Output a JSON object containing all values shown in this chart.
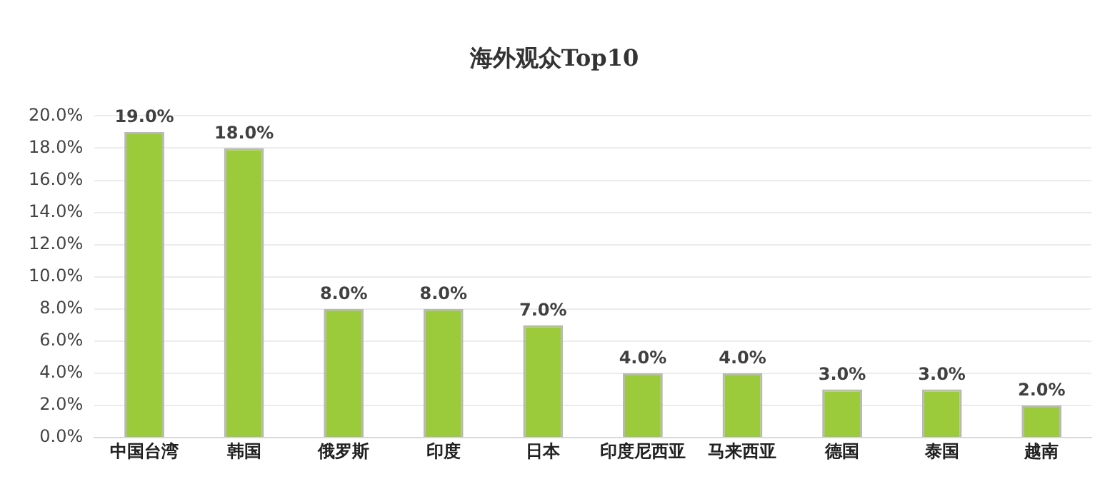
{
  "chart_data": {
    "type": "bar",
    "title": "海外观众Top10",
    "categories": [
      "中国台湾",
      "韩国",
      "俄罗斯",
      "印度",
      "日本",
      "印度尼西亚",
      "马来西亚",
      "德国",
      "泰国",
      "越南"
    ],
    "values": [
      19,
      18,
      8,
      8,
      7,
      4,
      4,
      3,
      3,
      2
    ],
    "value_labels": [
      "19.0%",
      "18.0%",
      "8.0%",
      "8.0%",
      "7.0%",
      "4.0%",
      "4.0%",
      "3.0%",
      "3.0%",
      "2.0%"
    ],
    "color": "#9bcb3b",
    "ylim": [
      0,
      20
    ],
    "yticks": [
      {
        "value": 0,
        "label": "0.0%"
      },
      {
        "value": 2,
        "label": "2.0%"
      },
      {
        "value": 4,
        "label": "4.0%"
      },
      {
        "value": 6,
        "label": "6.0%"
      },
      {
        "value": 8,
        "label": "8.0%"
      },
      {
        "value": 10,
        "label": "10.0%"
      },
      {
        "value": 12,
        "label": "12.0%"
      },
      {
        "value": 14,
        "label": "14.0%"
      },
      {
        "value": 16,
        "label": "16.0%"
      },
      {
        "value": 18,
        "label": "18.0%"
      },
      {
        "value": 20,
        "label": "20.0%"
      }
    ],
    "grid": "y",
    "legend": false
  }
}
